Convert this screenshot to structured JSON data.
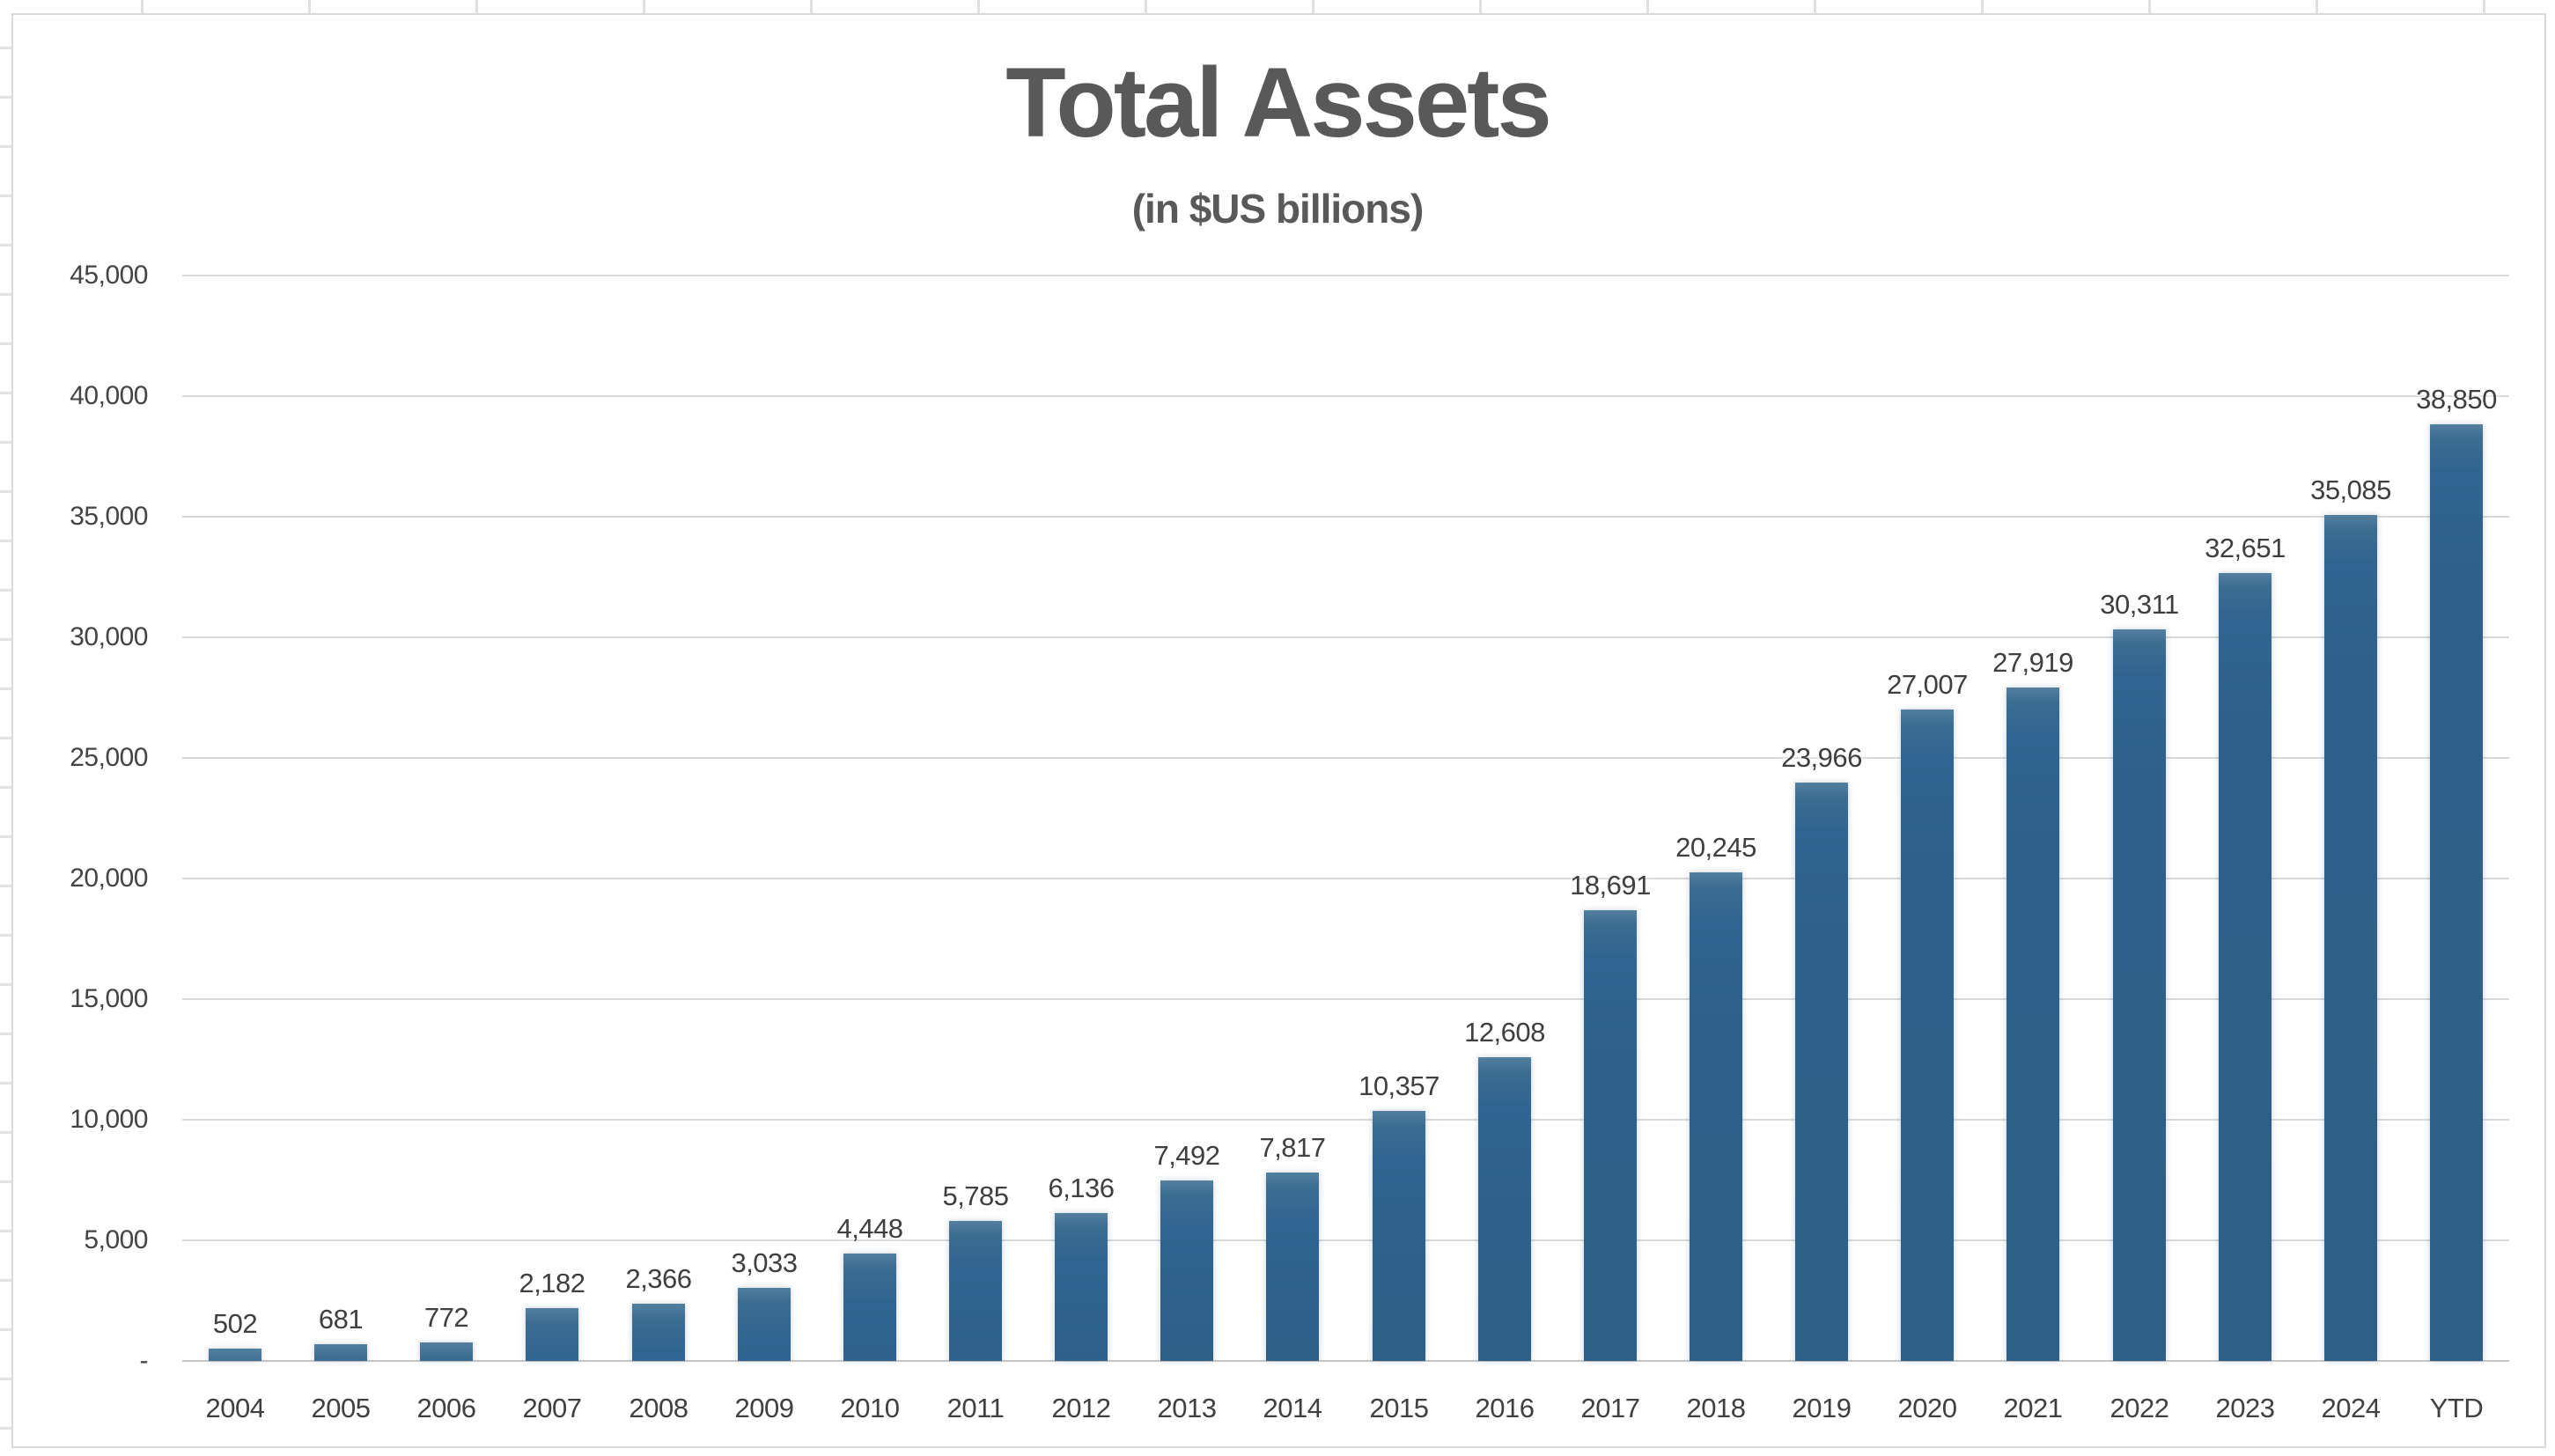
{
  "chart_data": {
    "type": "bar",
    "title": "Total Assets",
    "subtitle": "(in $US billions)",
    "categories": [
      "2004",
      "2005",
      "2006",
      "2007",
      "2008",
      "2009",
      "2010",
      "2011",
      "2012",
      "2013",
      "2014",
      "2015",
      "2016",
      "2017",
      "2018",
      "2019",
      "2020",
      "2021",
      "2022",
      "2023",
      "2024",
      "YTD"
    ],
    "values": [
      502,
      681,
      772,
      2182,
      2366,
      3033,
      4448,
      5785,
      6136,
      7492,
      7817,
      10357,
      12608,
      18691,
      20245,
      23966,
      27007,
      27919,
      30311,
      32651,
      35085,
      38850
    ],
    "value_labels": [
      "502",
      "681",
      "772",
      "2,182",
      "2,366",
      "3,033",
      "4,448",
      "5,785",
      "6,136",
      "7,492",
      "7,817",
      "10,357",
      "12,608",
      "18,691",
      "20,245",
      "23,966",
      "27,007",
      "27,919",
      "30,311",
      "32,651",
      "35,085",
      "38,850"
    ],
    "xlabel": "",
    "ylabel": "",
    "ylim": [
      0,
      45000
    ],
    "y_ticks": [
      {
        "value": 0,
        "label": "-"
      },
      {
        "value": 5000,
        "label": "5,000"
      },
      {
        "value": 10000,
        "label": "10,000"
      },
      {
        "value": 15000,
        "label": "15,000"
      },
      {
        "value": 20000,
        "label": "20,000"
      },
      {
        "value": 25000,
        "label": "25,000"
      },
      {
        "value": 30000,
        "label": "30,000"
      },
      {
        "value": 35000,
        "label": "35,000"
      },
      {
        "value": 40000,
        "label": "40,000"
      },
      {
        "value": 45000,
        "label": "45,000"
      }
    ],
    "grid": true,
    "legend_position": "none",
    "colors": {
      "bar_fill": "#2E6089",
      "bar_fill_top": "#54809F",
      "gridline": "#D9D9D9",
      "axis_line": "#C6C6C6",
      "title_text": "#595959",
      "label_text": "#404040",
      "frame_border": "#D9D9D9"
    }
  }
}
